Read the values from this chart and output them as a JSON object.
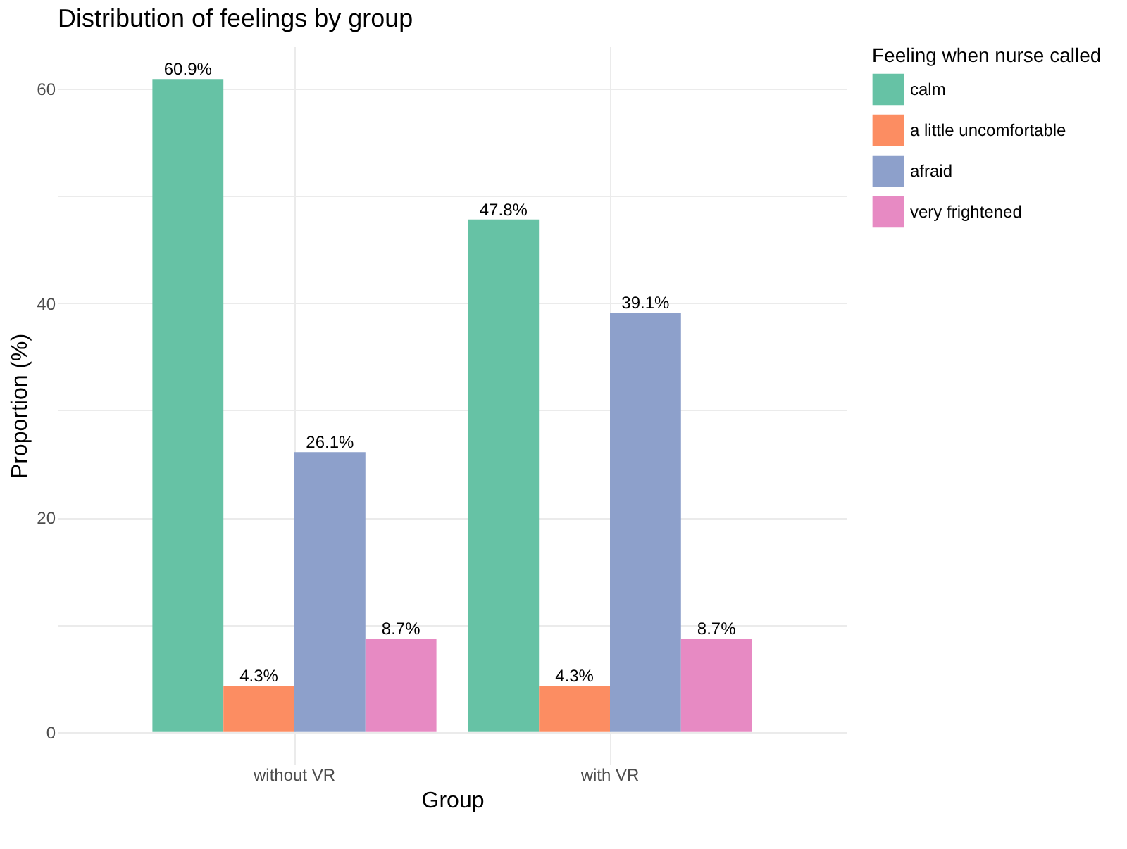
{
  "chart_data": {
    "type": "bar",
    "title": "Distribution of feelings by group",
    "xlabel": "Group",
    "ylabel": "Proportion (%)",
    "legend_title": "Feeling when nurse called",
    "categories": [
      "without VR",
      "with VR"
    ],
    "series": [
      {
        "name": "calm",
        "color": "#66c2a5",
        "values": [
          60.9,
          47.8
        ],
        "value_labels": [
          "60.9%",
          "47.8%"
        ]
      },
      {
        "name": "a little uncomfortable",
        "color": "#fc8d62",
        "values": [
          4.3,
          4.3
        ],
        "value_labels": [
          "4.3%",
          "4.3%"
        ]
      },
      {
        "name": "afraid",
        "color": "#8da0cb",
        "values": [
          26.1,
          39.1
        ],
        "value_labels": [
          "26.1%",
          "39.1%"
        ]
      },
      {
        "name": "very frightened",
        "color": "#e78ac3",
        "values": [
          8.7,
          8.7
        ],
        "value_labels": [
          "8.7%",
          "8.7%"
        ]
      }
    ],
    "ylim": [
      -3.045,
      63.945
    ],
    "yticks": [
      0,
      {
        "value": 10,
        "label": null
      },
      20,
      {
        "value": 30,
        "label": null
      },
      40,
      {
        "value": 50,
        "label": null
      },
      60
    ],
    "grid": true,
    "legend": "right"
  }
}
